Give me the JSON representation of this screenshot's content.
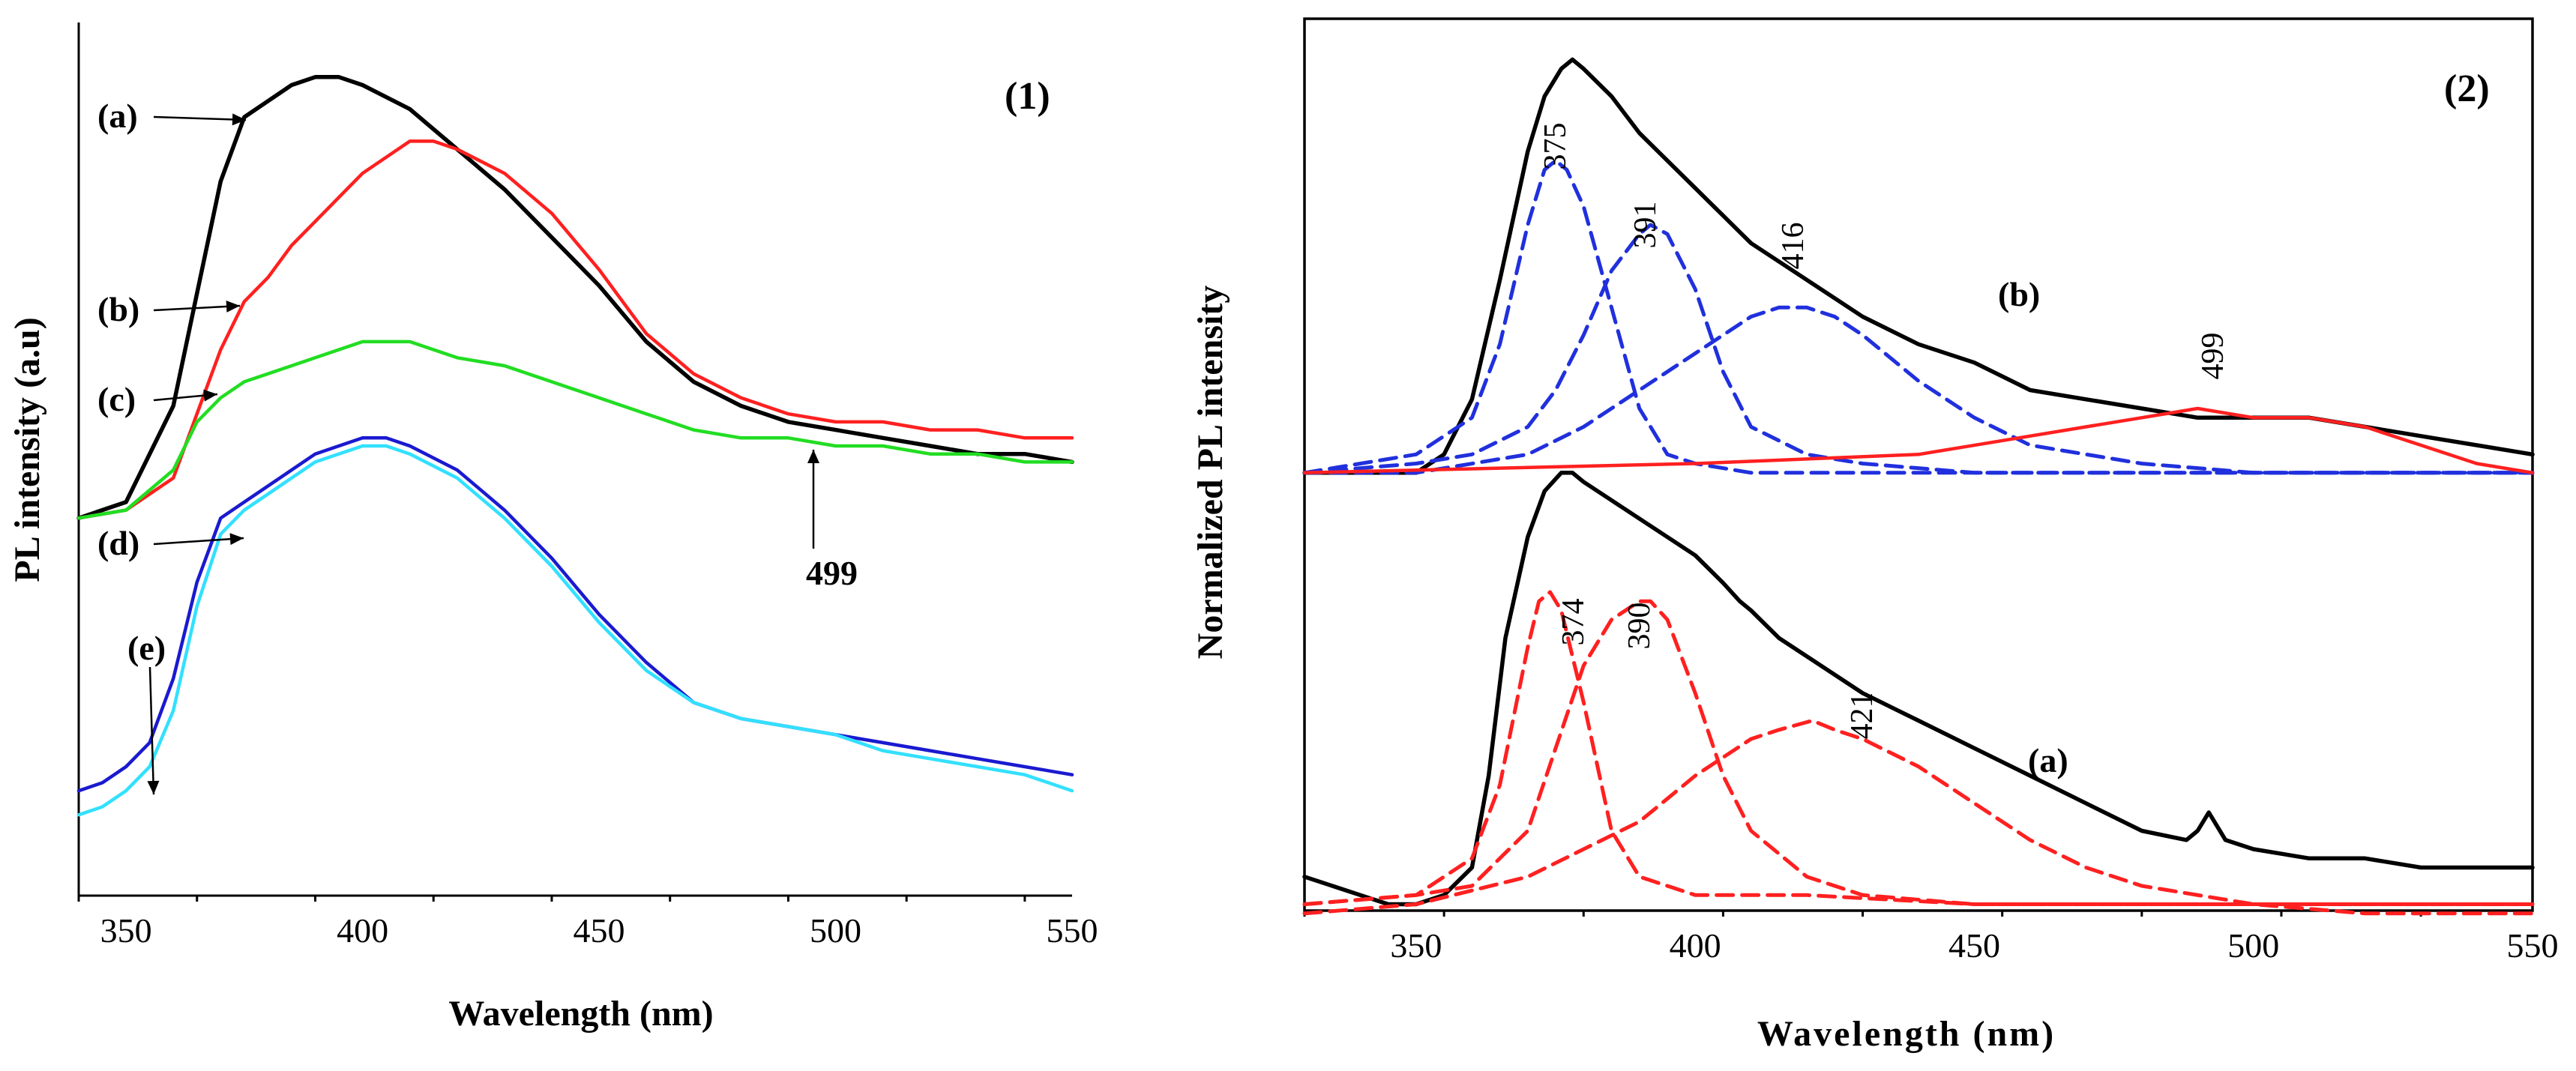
{
  "chart_data": [
    {
      "type": "line",
      "panel_label": "(1)",
      "xlabel": "Wavelength (nm)",
      "ylabel": "PL intensity (a.u)",
      "xlim": [
        340,
        550
      ],
      "xticks": [
        350,
        400,
        450,
        500,
        550
      ],
      "ylim": [
        0,
        1
      ],
      "series": [
        {
          "name": "(a)",
          "color": "#000000",
          "x": [
            340,
            350,
            360,
            365,
            370,
            375,
            380,
            385,
            390,
            395,
            400,
            410,
            420,
            430,
            440,
            450,
            460,
            470,
            480,
            490,
            500,
            510,
            520,
            530,
            540,
            550
          ],
          "y": [
            0.41,
            0.43,
            0.55,
            0.69,
            0.83,
            0.91,
            0.93,
            0.95,
            0.96,
            0.96,
            0.95,
            0.92,
            0.87,
            0.82,
            0.76,
            0.7,
            0.63,
            0.58,
            0.55,
            0.53,
            0.52,
            0.51,
            0.5,
            0.49,
            0.49,
            0.48
          ]
        },
        {
          "name": "(b)",
          "color": "#ff2020",
          "x": [
            340,
            350,
            360,
            365,
            370,
            375,
            380,
            385,
            390,
            395,
            400,
            405,
            410,
            415,
            420,
            430,
            440,
            450,
            460,
            470,
            480,
            490,
            500,
            510,
            520,
            530,
            540,
            550
          ],
          "y": [
            0.41,
            0.42,
            0.46,
            0.54,
            0.62,
            0.68,
            0.71,
            0.75,
            0.78,
            0.81,
            0.84,
            0.86,
            0.88,
            0.88,
            0.87,
            0.84,
            0.79,
            0.72,
            0.64,
            0.59,
            0.56,
            0.54,
            0.53,
            0.53,
            0.52,
            0.52,
            0.51,
            0.51
          ]
        },
        {
          "name": "(c)",
          "color": "#22dd22",
          "x": [
            340,
            350,
            360,
            365,
            370,
            375,
            380,
            390,
            400,
            405,
            410,
            420,
            430,
            440,
            450,
            460,
            470,
            480,
            490,
            500,
            510,
            520,
            530,
            540,
            550
          ],
          "y": [
            0.41,
            0.42,
            0.47,
            0.53,
            0.56,
            0.58,
            0.59,
            0.61,
            0.63,
            0.63,
            0.63,
            0.61,
            0.6,
            0.58,
            0.56,
            0.54,
            0.52,
            0.51,
            0.51,
            0.5,
            0.5,
            0.49,
            0.49,
            0.48,
            0.48
          ]
        },
        {
          "name": "(d)",
          "color": "#1a1ad0",
          "x": [
            340,
            345,
            350,
            355,
            360,
            365,
            370,
            375,
            380,
            390,
            400,
            405,
            410,
            420,
            430,
            440,
            450,
            460,
            470,
            480,
            490,
            500,
            510,
            520,
            530,
            540,
            550
          ],
          "y": [
            0.07,
            0.08,
            0.1,
            0.13,
            0.21,
            0.33,
            0.41,
            0.43,
            0.45,
            0.49,
            0.51,
            0.51,
            0.5,
            0.47,
            0.42,
            0.36,
            0.29,
            0.23,
            0.18,
            0.16,
            0.15,
            0.14,
            0.13,
            0.12,
            0.11,
            0.1,
            0.09
          ]
        },
        {
          "name": "(e)",
          "color": "#33e0ff",
          "x": [
            340,
            345,
            350,
            355,
            360,
            365,
            370,
            375,
            380,
            390,
            400,
            405,
            410,
            420,
            430,
            440,
            450,
            460,
            470,
            480,
            490,
            500,
            510,
            520,
            530,
            540,
            550
          ],
          "y": [
            0.04,
            0.05,
            0.07,
            0.1,
            0.17,
            0.3,
            0.39,
            0.42,
            0.44,
            0.48,
            0.5,
            0.5,
            0.49,
            0.46,
            0.41,
            0.35,
            0.28,
            0.22,
            0.18,
            0.16,
            0.15,
            0.14,
            0.12,
            0.11,
            0.1,
            0.09,
            0.07
          ]
        }
      ],
      "annotations": [
        {
          "text": "(a)",
          "target": "(a)",
          "x": 376,
          "y": 0.91
        },
        {
          "text": "(b)",
          "target": "(b)",
          "x": 374,
          "y": 0.67
        },
        {
          "text": "(c)",
          "target": "(c)",
          "x": 370,
          "y": 0.56
        },
        {
          "text": "(d)",
          "target": "(d)",
          "x": 374,
          "y": 0.42
        },
        {
          "text": "(e)",
          "target": "(e)",
          "x": 356,
          "y": 0.13
        },
        {
          "text": "499",
          "target": "(c)",
          "x": 499,
          "y": 0.5
        }
      ]
    },
    {
      "type": "line",
      "panel_label": "(2)",
      "xlabel": "Wavelength (nm)",
      "ylabel": "Normalized PL intensity",
      "xlim": [
        330,
        550
      ],
      "xticks": [
        350,
        400,
        450,
        500,
        550
      ],
      "ylim": [
        0,
        1
      ],
      "series": [
        {
          "name": "(b)",
          "color": "#000000",
          "style": "solid",
          "x": [
            330,
            350,
            355,
            360,
            365,
            370,
            373,
            376,
            378,
            380,
            385,
            390,
            395,
            400,
            405,
            410,
            415,
            420,
            430,
            440,
            450,
            460,
            470,
            480,
            490,
            500,
            510,
            520,
            530,
            540,
            550
          ],
          "y": [
            0.53,
            0.53,
            0.55,
            0.61,
            0.74,
            0.88,
            0.94,
            0.97,
            0.98,
            0.97,
            0.94,
            0.9,
            0.87,
            0.84,
            0.81,
            0.78,
            0.76,
            0.74,
            0.7,
            0.67,
            0.65,
            0.62,
            0.61,
            0.6,
            0.59,
            0.59,
            0.59,
            0.58,
            0.57,
            0.56,
            0.55
          ]
        },
        {
          "name": "(b) 375 nm",
          "color": "#2030dd",
          "style": "dashed",
          "x": [
            330,
            350,
            360,
            365,
            370,
            373,
            375,
            377,
            380,
            385,
            390,
            395,
            400,
            410,
            420,
            450,
            500,
            550
          ],
          "y": [
            0.53,
            0.55,
            0.59,
            0.67,
            0.8,
            0.86,
            0.87,
            0.86,
            0.82,
            0.71,
            0.6,
            0.55,
            0.54,
            0.53,
            0.53,
            0.53,
            0.53,
            0.53
          ]
        },
        {
          "name": "(b) 391 nm",
          "color": "#2030dd",
          "style": "dashed",
          "x": [
            330,
            350,
            360,
            370,
            375,
            380,
            385,
            390,
            392,
            395,
            400,
            405,
            410,
            420,
            430,
            450,
            500,
            550
          ],
          "y": [
            0.53,
            0.54,
            0.55,
            0.58,
            0.62,
            0.68,
            0.75,
            0.79,
            0.8,
            0.79,
            0.73,
            0.64,
            0.58,
            0.55,
            0.54,
            0.53,
            0.53,
            0.53
          ]
        },
        {
          "name": "(b) 416 nm",
          "color": "#2030dd",
          "style": "dashed",
          "x": [
            330,
            350,
            370,
            380,
            390,
            400,
            405,
            410,
            415,
            418,
            420,
            425,
            430,
            440,
            450,
            460,
            480,
            500,
            550
          ],
          "y": [
            0.53,
            0.53,
            0.55,
            0.58,
            0.62,
            0.66,
            0.68,
            0.7,
            0.71,
            0.71,
            0.71,
            0.7,
            0.68,
            0.63,
            0.59,
            0.56,
            0.54,
            0.53,
            0.53
          ]
        },
        {
          "name": "(b) 499 nm",
          "color": "#ff2020",
          "style": "solid",
          "x": [
            330,
            400,
            440,
            460,
            470,
            480,
            490,
            500,
            510,
            520,
            530,
            540,
            550
          ],
          "y": [
            0.53,
            0.54,
            0.55,
            0.57,
            0.58,
            0.59,
            0.6,
            0.59,
            0.59,
            0.58,
            0.56,
            0.54,
            0.53
          ]
        },
        {
          "name": "(a)",
          "color": "#000000",
          "style": "solid",
          "x": [
            330,
            340,
            345,
            350,
            355,
            360,
            363,
            366,
            370,
            373,
            376,
            378,
            380,
            385,
            390,
            395,
            400,
            405,
            408,
            410,
            415,
            420,
            430,
            440,
            450,
            460,
            470,
            480,
            488,
            490,
            492,
            495,
            500,
            510,
            520,
            530,
            540,
            550
          ],
          "y": [
            0.09,
            0.07,
            0.06,
            0.06,
            0.07,
            0.1,
            0.2,
            0.35,
            0.46,
            0.51,
            0.53,
            0.53,
            0.52,
            0.5,
            0.48,
            0.46,
            0.44,
            0.41,
            0.39,
            0.38,
            0.35,
            0.33,
            0.29,
            0.26,
            0.23,
            0.2,
            0.17,
            0.14,
            0.13,
            0.14,
            0.16,
            0.13,
            0.12,
            0.11,
            0.11,
            0.1,
            0.1,
            0.1
          ]
        },
        {
          "name": "(a) 374 nm",
          "color": "#ff2020",
          "style": "dashed",
          "x": [
            330,
            350,
            360,
            365,
            370,
            372,
            374,
            376,
            380,
            385,
            390,
            400,
            420,
            450,
            550
          ],
          "y": [
            0.06,
            0.07,
            0.11,
            0.19,
            0.34,
            0.39,
            0.4,
            0.38,
            0.28,
            0.14,
            0.09,
            0.07,
            0.07,
            0.06,
            0.06
          ]
        },
        {
          "name": "(a) 390 nm",
          "color": "#ff2020",
          "style": "dashed",
          "x": [
            330,
            350,
            360,
            370,
            375,
            380,
            385,
            390,
            392,
            395,
            400,
            405,
            410,
            420,
            430,
            450,
            550
          ],
          "y": [
            0.06,
            0.07,
            0.08,
            0.14,
            0.23,
            0.32,
            0.37,
            0.39,
            0.39,
            0.37,
            0.29,
            0.2,
            0.14,
            0.09,
            0.07,
            0.06,
            0.06
          ]
        },
        {
          "name": "(a) 421 nm",
          "color": "#ff2020",
          "style": "dashed",
          "x": [
            330,
            350,
            370,
            390,
            400,
            410,
            415,
            421,
            425,
            430,
            440,
            450,
            460,
            470,
            480,
            500,
            520,
            550
          ],
          "y": [
            0.05,
            0.06,
            0.09,
            0.15,
            0.2,
            0.24,
            0.25,
            0.26,
            0.25,
            0.24,
            0.21,
            0.17,
            0.13,
            0.1,
            0.08,
            0.06,
            0.05,
            0.05
          ]
        }
      ],
      "annotations": [
        {
          "text": "375",
          "x": 375,
          "y": 0.88
        },
        {
          "text": "391",
          "x": 392,
          "y": 0.82
        },
        {
          "text": "416",
          "x": 419,
          "y": 0.77
        },
        {
          "text": "499",
          "x": 496,
          "y": 0.63
        },
        {
          "text": "374",
          "x": 380,
          "y": 0.56
        },
        {
          "text": "390",
          "x": 395,
          "y": 0.53
        },
        {
          "text": "421",
          "x": 426,
          "y": 0.37
        },
        {
          "text": "(b)",
          "x": 468,
          "y": 0.67
        },
        {
          "text": "(a)",
          "x": 468,
          "y": 0.23
        }
      ]
    }
  ]
}
